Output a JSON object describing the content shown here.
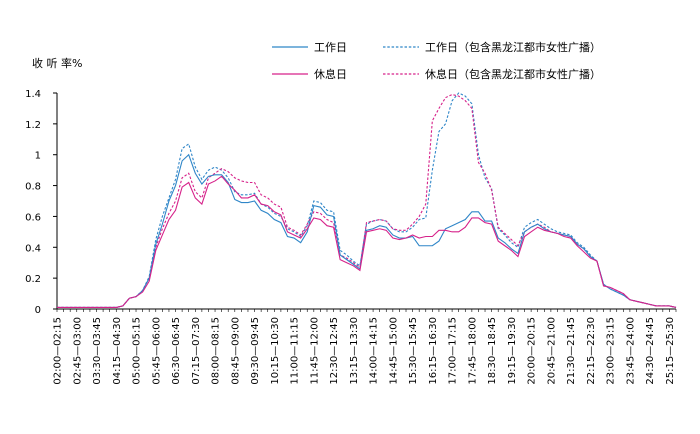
{
  "chart_data": {
    "type": "line",
    "title": "",
    "xlabel": "",
    "ylabel": "收 听 率%",
    "ylim": [
      0,
      1.4
    ],
    "yticks": [
      "0",
      "0.2",
      "0.4",
      "0.6",
      "0.8",
      "1",
      "1.2",
      "1.4"
    ],
    "grid": false,
    "legend_position": "top-right",
    "x_tick_labels": [
      "02:00—02:15",
      "02:45—03:00",
      "03:30—03:45",
      "04:15—04:30",
      "05:00—05:15",
      "05:45—06:00",
      "06:30—06:45",
      "07:15—07:30",
      "08:00—08:15",
      "08:45—09:00",
      "09:30—09:45",
      "10:15—10:30",
      "11:00—11:15",
      "11:45—12:00",
      "12:30—12:45",
      "13:15—13:30",
      "14:00—14:15",
      "14:45—15:00",
      "15:30—15:45",
      "16:15—16:30",
      "17:00—17:15",
      "17:45—18:00",
      "18:30—18:45",
      "19:15—19:30",
      "20:00—20:15",
      "20:45—21:00",
      "21:30—21:45",
      "22:15—22:30",
      "23:00—23:15",
      "23:45—24:00",
      "24:30—24:45",
      "25:15—25:30"
    ],
    "series": [
      {
        "name": "工作日",
        "color": "#2f86c8",
        "style": "solid",
        "values": [
          0.01,
          0.01,
          0.01,
          0.01,
          0.01,
          0.01,
          0.01,
          0.01,
          0.01,
          0.01,
          0.02,
          0.07,
          0.08,
          0.12,
          0.2,
          0.42,
          0.55,
          0.7,
          0.8,
          0.96,
          1.0,
          0.88,
          0.81,
          0.86,
          0.87,
          0.87,
          0.82,
          0.71,
          0.69,
          0.69,
          0.7,
          0.64,
          0.62,
          0.58,
          0.56,
          0.47,
          0.46,
          0.43,
          0.5,
          0.67,
          0.66,
          0.61,
          0.6,
          0.35,
          0.32,
          0.29,
          0.26,
          0.51,
          0.52,
          0.54,
          0.53,
          0.48,
          0.46,
          0.46,
          0.47,
          0.41,
          0.41,
          0.41,
          0.44,
          0.52,
          0.54,
          0.56,
          0.58,
          0.63,
          0.63,
          0.57,
          0.57,
          0.46,
          0.43,
          0.39,
          0.36,
          0.5,
          0.53,
          0.55,
          0.52,
          0.5,
          0.49,
          0.48,
          0.47,
          0.42,
          0.39,
          0.34,
          0.31,
          0.16,
          0.13,
          0.11,
          0.09,
          0.06,
          0.05,
          0.04,
          0.03,
          0.02,
          0.02,
          0.02,
          0.01
        ]
      },
      {
        "name": "工作日（包含黑龙江都市女性广播）",
        "color": "#2f86c8",
        "style": "dashed",
        "values": [
          0.01,
          0.01,
          0.01,
          0.01,
          0.01,
          0.01,
          0.01,
          0.01,
          0.01,
          0.01,
          0.02,
          0.07,
          0.08,
          0.12,
          0.21,
          0.45,
          0.6,
          0.72,
          0.84,
          1.04,
          1.07,
          0.92,
          0.84,
          0.9,
          0.92,
          0.9,
          0.85,
          0.76,
          0.74,
          0.74,
          0.75,
          0.68,
          0.66,
          0.62,
          0.6,
          0.52,
          0.5,
          0.47,
          0.54,
          0.7,
          0.69,
          0.64,
          0.63,
          0.38,
          0.35,
          0.31,
          0.28,
          0.55,
          0.57,
          0.58,
          0.57,
          0.52,
          0.5,
          0.5,
          0.53,
          0.58,
          0.59,
          0.9,
          1.15,
          1.2,
          1.35,
          1.4,
          1.38,
          1.33,
          1.0,
          0.85,
          0.78,
          0.52,
          0.48,
          0.43,
          0.4,
          0.53,
          0.56,
          0.58,
          0.55,
          0.52,
          0.5,
          0.49,
          0.48,
          0.43,
          0.4,
          0.35,
          0.31,
          0.16,
          0.13,
          0.11,
          0.09,
          0.06,
          0.05,
          0.04,
          0.03,
          0.02,
          0.02,
          0.02,
          0.01
        ]
      },
      {
        "name": "休息日",
        "color": "#d6228a",
        "style": "solid",
        "values": [
          0.01,
          0.01,
          0.01,
          0.01,
          0.01,
          0.01,
          0.01,
          0.01,
          0.01,
          0.01,
          0.02,
          0.07,
          0.08,
          0.11,
          0.18,
          0.38,
          0.48,
          0.58,
          0.64,
          0.79,
          0.82,
          0.72,
          0.68,
          0.81,
          0.83,
          0.86,
          0.81,
          0.77,
          0.72,
          0.72,
          0.74,
          0.68,
          0.67,
          0.63,
          0.61,
          0.5,
          0.48,
          0.46,
          0.52,
          0.59,
          0.58,
          0.54,
          0.53,
          0.32,
          0.3,
          0.28,
          0.25,
          0.5,
          0.51,
          0.52,
          0.51,
          0.46,
          0.45,
          0.46,
          0.48,
          0.46,
          0.47,
          0.47,
          0.51,
          0.51,
          0.5,
          0.5,
          0.53,
          0.59,
          0.59,
          0.56,
          0.55,
          0.44,
          0.41,
          0.38,
          0.34,
          0.47,
          0.5,
          0.53,
          0.51,
          0.5,
          0.49,
          0.47,
          0.46,
          0.41,
          0.37,
          0.33,
          0.31,
          0.15,
          0.14,
          0.12,
          0.1,
          0.06,
          0.05,
          0.04,
          0.03,
          0.02,
          0.02,
          0.02,
          0.01
        ]
      },
      {
        "name": "休息日（包含黑龙江都市女性广播）",
        "color": "#d6228a",
        "style": "dashed",
        "values": [
          0.01,
          0.01,
          0.01,
          0.01,
          0.01,
          0.01,
          0.01,
          0.01,
          0.01,
          0.01,
          0.02,
          0.07,
          0.08,
          0.12,
          0.2,
          0.4,
          0.52,
          0.62,
          0.7,
          0.85,
          0.88,
          0.76,
          0.72,
          0.85,
          0.88,
          0.91,
          0.89,
          0.85,
          0.83,
          0.82,
          0.82,
          0.74,
          0.72,
          0.68,
          0.66,
          0.53,
          0.51,
          0.48,
          0.55,
          0.63,
          0.62,
          0.58,
          0.56,
          0.35,
          0.33,
          0.3,
          0.27,
          0.56,
          0.57,
          0.58,
          0.57,
          0.52,
          0.51,
          0.51,
          0.55,
          0.6,
          0.68,
          1.22,
          1.3,
          1.37,
          1.39,
          1.38,
          1.35,
          1.3,
          0.95,
          0.88,
          0.77,
          0.53,
          0.49,
          0.45,
          0.41,
          0.5,
          0.53,
          0.55,
          0.53,
          0.5,
          0.49,
          0.48,
          0.47,
          0.42,
          0.39,
          0.34,
          0.31,
          0.15,
          0.14,
          0.12,
          0.1,
          0.06,
          0.05,
          0.04,
          0.03,
          0.02,
          0.02,
          0.02,
          0.01
        ]
      }
    ]
  }
}
